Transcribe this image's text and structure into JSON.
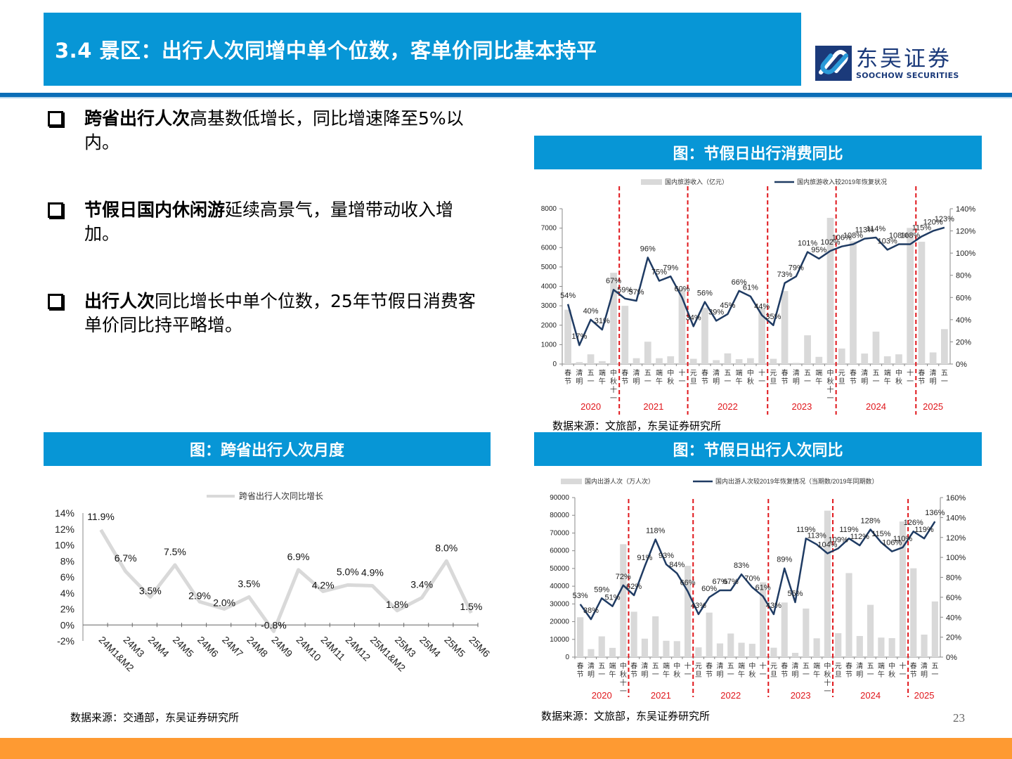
{
  "header": {
    "title": "3.4 景区：出行人次同增中单个位数，客单价同比基本持平",
    "logo_cn": "东吴证券",
    "logo_en": "SOOCHOW SECURITIES"
  },
  "bullets": [
    {
      "bold": "跨省出行人次",
      "text": "高基数低增长，同比增速降至5%以内。"
    },
    {
      "bold": "节假日国内休闲游",
      "text": "延续高景气，量增带动收入增加。"
    },
    {
      "bold": "出行人次",
      "text": "同比增长中单个位数，25年节假日消费客单价同比持平略增。"
    }
  ],
  "panels": {
    "revenue": {
      "header": "图：节假日出行消费同比",
      "source": "数据来源：文旅部，东吴证券研究所"
    },
    "cross_province": {
      "header": "图：跨省出行人次月度",
      "source": "数据来源：交通部，东吴证券研究所"
    },
    "trips": {
      "header": "图：节假日出行人次同比",
      "source": "数据来源：文旅部，东吴证券研究所"
    }
  },
  "page_number": "23",
  "colors": {
    "brand_blue": "#0796d6",
    "rule_blue": "#0a6db7",
    "line_navy": "#1f3b63",
    "bar_gray": "#d9d9d9",
    "divider_red": "#e0161b",
    "footer_orange": "#fe9a32",
    "cross_line": "#d9d9d9"
  },
  "chart_data": [
    {
      "id": "revenue",
      "type": "bar+line",
      "title": "图：节假日出行消费同比",
      "legend": [
        "国内旅游收入（亿元）",
        "国内旅游收入较2019年恢复状况"
      ],
      "categories": [
        "春节",
        "清明",
        "五一",
        "端午",
        "中秋十一",
        "春节",
        "清明",
        "五一",
        "端午",
        "中秋",
        "十一",
        "元旦",
        "春节",
        "清明",
        "五一",
        "端午",
        "中秋",
        "十一",
        "元旦",
        "春节",
        "清明",
        "五一",
        "端午",
        "中秋十一",
        "元旦",
        "春节",
        "清明",
        "五一",
        "端午",
        "中秋",
        "十一",
        "春节",
        "清明",
        "五一"
      ],
      "years": [
        {
          "label": "2020",
          "start": 0,
          "end": 5
        },
        {
          "label": "2021",
          "start": 5,
          "end": 11
        },
        {
          "label": "2022",
          "start": 11,
          "end": 18
        },
        {
          "label": "2023",
          "start": 18,
          "end": 24
        },
        {
          "label": "2024",
          "start": 24,
          "end": 31
        },
        {
          "label": "2025",
          "start": 31,
          "end": 34
        }
      ],
      "series": [
        {
          "name": "国内旅游收入（亿元）",
          "type": "bar",
          "axis": "left",
          "values": [
            2800,
            100,
            500,
            150,
            4700,
            3000,
            300,
            1150,
            300,
            400,
            3900,
            270,
            2900,
            200,
            550,
            250,
            300,
            2900,
            270,
            3760,
            60,
            1480,
            370,
            7530,
            800,
            6320,
            540,
            1670,
            400,
            500,
            7010,
            6300,
            600,
            1800
          ]
        },
        {
          "name": "国内旅游收入较2019年恢复状况",
          "type": "line",
          "axis": "right",
          "unit": "%",
          "values": [
            54,
            17,
            40,
            31,
            67,
            59,
            57,
            96,
            75,
            79,
            60,
            34,
            56,
            39,
            45,
            66,
            61,
            44,
            35,
            73,
            79,
            101,
            95,
            102,
            106,
            108,
            113,
            114,
            103,
            108,
            108,
            115,
            120,
            123
          ]
        }
      ],
      "left_axis": {
        "min": 0,
        "max": 8000,
        "ticks": [
          0,
          1000,
          2000,
          3000,
          4000,
          5000,
          6000,
          7000,
          8000
        ]
      },
      "right_axis": {
        "min": 0,
        "max": 140,
        "ticks": [
          "0%",
          "20%",
          "40%",
          "60%",
          "80%",
          "100%",
          "120%",
          "140%"
        ]
      }
    },
    {
      "id": "cross_province",
      "type": "line",
      "title": "图：跨省出行人次月度",
      "legend": [
        "跨省出行人次同比增长"
      ],
      "categories": [
        "24M1&M2",
        "24M3",
        "24M4",
        "24M5",
        "24M6",
        "24M7",
        "24M8",
        "24M9",
        "24M10",
        "24M11",
        "24M12",
        "25M1&M2",
        "25M3",
        "25M4",
        "25M5",
        "25M6"
      ],
      "values": [
        11.9,
        6.7,
        3.5,
        7.5,
        2.9,
        2.0,
        3.5,
        -0.8,
        6.9,
        4.2,
        5.0,
        4.9,
        1.8,
        3.4,
        8.0,
        1.5
      ],
      "labels": [
        "11.9%",
        "6.7%",
        "3.5%",
        "7.5%",
        "2.9%",
        "2.0%",
        "3.5%",
        "-0.8%",
        "6.9%",
        "4.2%",
        "5.0%",
        "4.9%",
        "1.8%",
        "3.4%",
        "8.0%",
        "1.5%"
      ],
      "y_axis": {
        "min": -2,
        "max": 14,
        "ticks": [
          "-2%",
          "0%",
          "2%",
          "4%",
          "6%",
          "8%",
          "10%",
          "12%",
          "14%"
        ]
      }
    },
    {
      "id": "trips",
      "type": "bar+line",
      "title": "图：节假日出行人次同比",
      "legend": [
        "国内出游人次（万人次）",
        "国内出游人次较2019年恢复情况（当期数/2019年同期数）"
      ],
      "categories": [
        "春节",
        "清明",
        "五一",
        "端午",
        "中秋十一",
        "春节",
        "清明",
        "五一",
        "端午",
        "中秋",
        "十一",
        "元旦",
        "春节",
        "清明",
        "五一",
        "端午",
        "中秋",
        "十一",
        "元旦",
        "春节",
        "清明",
        "五一",
        "端午",
        "中秋十一",
        "元旦",
        "春节",
        "清明",
        "五一",
        "端午",
        "中秋",
        "十一",
        "春节",
        "清明",
        "五一"
      ],
      "years": [
        {
          "label": "2020",
          "start": 0,
          "end": 5
        },
        {
          "label": "2021",
          "start": 5,
          "end": 11
        },
        {
          "label": "2022",
          "start": 11,
          "end": 18
        },
        {
          "label": "2023",
          "start": 18,
          "end": 24
        },
        {
          "label": "2024",
          "start": 24,
          "end": 31
        },
        {
          "label": "2025",
          "start": 31,
          "end": 34
        }
      ],
      "series": [
        {
          "name": "国内出游人次（万人次）",
          "type": "bar",
          "axis": "left",
          "values": [
            22500,
            4500,
            11700,
            5200,
            63700,
            25600,
            10400,
            23000,
            9200,
            9000,
            51500,
            5500,
            25100,
            7700,
            13300,
            8100,
            7500,
            42200,
            5300,
            30800,
            2400,
            27400,
            10600,
            82600,
            13500,
            47400,
            11900,
            29500,
            11000,
            10700,
            76500,
            50100,
            12700,
            31400
          ]
        },
        {
          "name": "国内出游人次较2019年恢复情况",
          "type": "line",
          "axis": "right",
          "unit": "%",
          "values": [
            53,
            38,
            59,
            51,
            72,
            62,
            91,
            118,
            93,
            84,
            66,
            43,
            60,
            67,
            67,
            83,
            70,
            61,
            43,
            89,
            55,
            119,
            113,
            104,
            109,
            119,
            112,
            128,
            115,
            106,
            110,
            126,
            119,
            136
          ]
        }
      ],
      "left_axis": {
        "min": 0,
        "max": 90000,
        "ticks": [
          0,
          10000,
          20000,
          30000,
          40000,
          50000,
          60000,
          70000,
          80000,
          90000
        ]
      },
      "right_axis": {
        "min": 0,
        "max": 160,
        "ticks": [
          "0%",
          "20%",
          "40%",
          "60%",
          "80%",
          "100%",
          "120%",
          "140%",
          "160%"
        ]
      }
    }
  ]
}
